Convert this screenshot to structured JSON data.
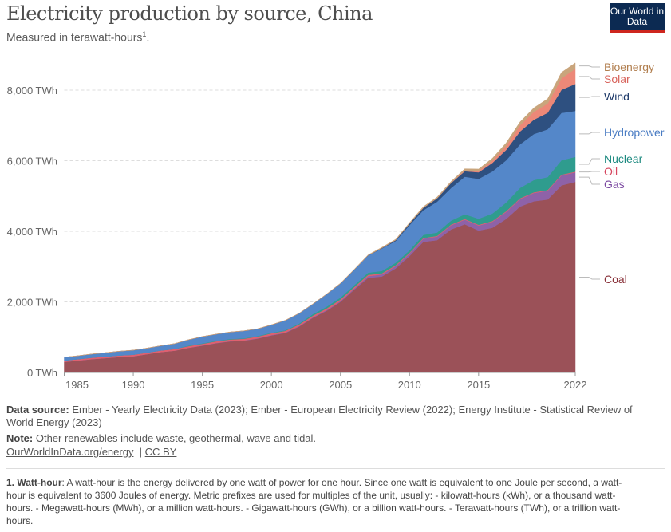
{
  "header": {
    "title": "Electricity production by source, China",
    "subtitle": "Measured in terawatt-hours",
    "subtitle_sup": "1",
    "subtitle_end": ".",
    "logo": "Our World in Data"
  },
  "chart_data": {
    "type": "area",
    "stacked": true,
    "title": "Electricity production by source, China",
    "ylabel": "TWh",
    "ylim": [
      0,
      8000
    ],
    "yticks": [
      0,
      2000,
      4000,
      6000,
      8000
    ],
    "ytick_labels": [
      "0 TWh",
      "2,000 TWh",
      "4,000 TWh",
      "6,000 TWh",
      "8,000 TWh"
    ],
    "xticks": [
      1985,
      1990,
      1995,
      2000,
      2005,
      2010,
      2015,
      2022
    ],
    "xlim": [
      1985,
      2022
    ],
    "grid": true,
    "legend": "right",
    "x": [
      1985,
      1986,
      1987,
      1988,
      1989,
      1990,
      1991,
      1992,
      1993,
      1994,
      1995,
      1996,
      1997,
      1998,
      1999,
      2000,
      2001,
      2002,
      2003,
      2004,
      2005,
      2006,
      2007,
      2008,
      2009,
      2010,
      2011,
      2012,
      2013,
      2014,
      2015,
      2016,
      2017,
      2018,
      2019,
      2020,
      2021,
      2022
    ],
    "series": [
      {
        "name": "Coal",
        "color": "#9b5158",
        "label_color": "#883038",
        "values": [
          300,
          340,
          380,
          410,
          440,
          460,
          520,
          580,
          620,
          700,
          760,
          830,
          880,
          900,
          960,
          1050,
          1120,
          1300,
          1550,
          1750,
          2000,
          2350,
          2680,
          2720,
          2950,
          3300,
          3700,
          3750,
          4050,
          4200,
          4020,
          4100,
          4350,
          4700,
          4850,
          4900,
          5300,
          5400
        ]
      },
      {
        "name": "Gas",
        "color": "#8e62a8",
        "label_color": "#7a48a0",
        "values": [
          0,
          0,
          0,
          0,
          0,
          0,
          0,
          0,
          0,
          0,
          5,
          5,
          6,
          7,
          8,
          10,
          12,
          14,
          16,
          20,
          25,
          30,
          50,
          60,
          65,
          70,
          90,
          100,
          120,
          130,
          145,
          170,
          200,
          215,
          235,
          250,
          285,
          270
        ]
      },
      {
        "name": "Oil",
        "color": "#e0606f",
        "label_color": "#d6455e",
        "values": [
          40,
          40,
          42,
          42,
          44,
          45,
          45,
          46,
          46,
          47,
          48,
          48,
          49,
          49,
          50,
          50,
          48,
          46,
          45,
          45,
          45,
          40,
          35,
          30,
          25,
          20,
          20,
          20,
          20,
          20,
          20,
          20,
          20,
          20,
          20,
          20,
          20,
          20
        ]
      },
      {
        "name": "Nuclear",
        "color": "#2f9c8e",
        "label_color": "#1d8a80",
        "values": [
          0,
          0,
          0,
          0,
          0,
          0,
          0,
          0,
          0,
          14,
          13,
          14,
          14,
          14,
          15,
          17,
          17,
          25,
          43,
          50,
          53,
          55,
          62,
          68,
          70,
          74,
          87,
          97,
          112,
          133,
          171,
          213,
          248,
          295,
          348,
          366,
          408,
          418
        ]
      },
      {
        "name": "Hydropower",
        "color": "#5487c9",
        "label_color": "#4a7cc3",
        "values": [
          92,
          94,
          100,
          109,
          118,
          127,
          125,
          132,
          151,
          167,
          191,
          188,
          196,
          208,
          204,
          222,
          277,
          288,
          284,
          354,
          397,
          436,
          486,
          637,
          616,
          711,
          699,
          872,
          921,
          1064,
          1130,
          1193,
          1194,
          1232,
          1302,
          1355,
          1340,
          1303
        ]
      },
      {
        "name": "Wind",
        "color": "#2e5080",
        "label_color": "#1f3b6a",
        "values": [
          0,
          0,
          0,
          0,
          0,
          0,
          0,
          0,
          0,
          0,
          0,
          0,
          0,
          0,
          0,
          1,
          1,
          1,
          1,
          1,
          2,
          4,
          6,
          13,
          27,
          45,
          70,
          96,
          141,
          156,
          186,
          241,
          295,
          366,
          406,
          467,
          656,
          763
        ]
      },
      {
        "name": "Solar",
        "color": "#ec8878",
        "label_color": "#d8635b",
        "values": [
          0,
          0,
          0,
          0,
          0,
          0,
          0,
          0,
          0,
          0,
          0,
          0,
          0,
          0,
          0,
          0,
          0,
          0,
          0,
          0,
          0,
          0,
          0,
          0,
          0,
          1,
          3,
          4,
          8,
          23,
          39,
          67,
          118,
          177,
          224,
          261,
          327,
          428
        ]
      },
      {
        "name": "Bioenergy",
        "color": "#c9a57c",
        "label_color": "#b07d4d",
        "values": [
          3,
          3,
          3,
          3,
          3,
          3,
          3,
          3,
          3,
          3,
          4,
          4,
          4,
          4,
          4,
          5,
          5,
          5,
          5,
          6,
          8,
          10,
          15,
          20,
          22,
          25,
          30,
          33,
          38,
          45,
          53,
          65,
          81,
          93,
          112,
          135,
          163,
          170
        ]
      }
    ]
  },
  "footer": {
    "source_label": "Data source:",
    "source_text": "Ember - Yearly Electricity Data (2023); Ember - European Electricity Review (2022); Energy Institute - Statistical Review of World Energy (2023)",
    "note_label": "Note:",
    "note_text": "Other renewables include waste, geothermal, wave and tidal.",
    "link": "OurWorldInData.org/energy",
    "license": "CC BY",
    "footnote_label": "1. Watt-hour",
    "footnote_text": ": A watt-hour is the energy delivered by one watt of power for one hour. Since one watt is equivalent to one Joule per second, a watt-hour is equivalent to 3600 Joules of energy. Metric prefixes are used for multiples of the unit, usually: - kilowatt-hours (kWh), or a thousand watt-hours. - Megawatt-hours (MWh), or a million watt-hours. - Gigawatt-hours (GWh), or a billion watt-hours. - Terawatt-hours (TWh), or a trillion watt-hours."
  }
}
